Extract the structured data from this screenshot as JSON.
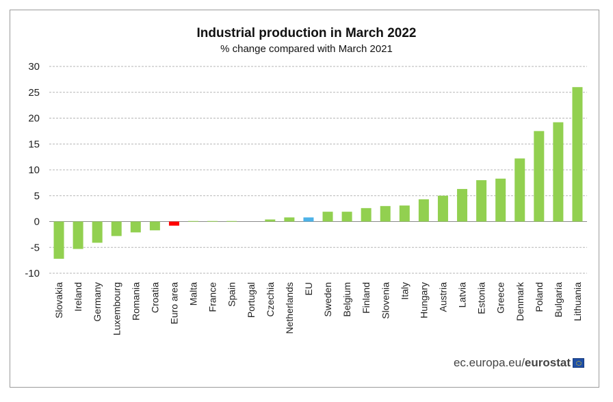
{
  "chart_data": {
    "type": "bar",
    "title": "Industrial production in March 2022",
    "subtitle": "% change compared with March 2021",
    "xlabel": "",
    "ylabel": "",
    "ylim": [
      -10,
      30
    ],
    "yticks": [
      30,
      25,
      20,
      15,
      10,
      5,
      0,
      -5,
      -10
    ],
    "grid": true,
    "categories": [
      "Slovakia",
      "Ireland",
      "Germany",
      "Luxembourg",
      "Romania",
      "Croatia",
      "Euro area",
      "Malta",
      "France",
      "Spain",
      "Portugal",
      "Czechia",
      "Netherlands",
      "EU",
      "Sweden",
      "Belgium",
      "Finland",
      "Slovenia",
      "Italy",
      "Hungary",
      "Austria",
      "Latvia",
      "Estonia",
      "Greece",
      "Denmark",
      "Poland",
      "Bulgaria",
      "Lithuania"
    ],
    "values": [
      -7.2,
      -5.3,
      -4.1,
      -2.8,
      -2.1,
      -1.7,
      -0.8,
      0.1,
      0.1,
      0.1,
      0.0,
      0.4,
      0.8,
      0.8,
      1.9,
      1.9,
      2.6,
      3.0,
      3.1,
      4.3,
      5.0,
      6.3,
      8.0,
      8.3,
      12.2,
      17.5,
      19.2,
      26.0
    ],
    "colors": {
      "default": "#92d050",
      "Euro area": "#ff0000",
      "EU": "#4db2e8"
    }
  },
  "source": {
    "text": "ec.europa.eu/",
    "bold": "eurostat",
    "flag_icon": "eu-flag-icon"
  }
}
